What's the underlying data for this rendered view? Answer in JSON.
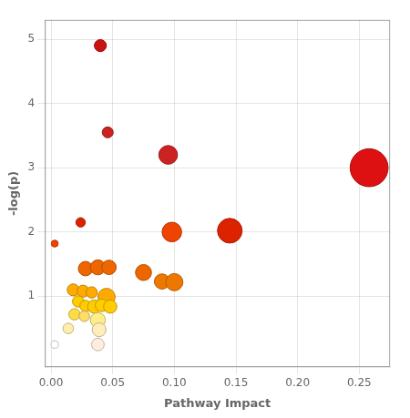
{
  "chart_data": {
    "type": "bubble",
    "xlabel": "Pathway Impact",
    "ylabel": "-log(p)",
    "x": [
      0.04,
      0.046,
      0.095,
      0.258,
      0.024,
      0.003,
      0.098,
      0.145,
      0.028,
      0.038,
      0.047,
      0.075,
      0.09,
      0.1,
      0.018,
      0.026,
      0.033,
      0.045,
      0.022,
      0.028,
      0.035,
      0.041,
      0.048,
      0.019,
      0.027,
      0.038,
      0.014,
      0.039,
      0.003,
      0.038
    ],
    "values": [
      4.9,
      3.55,
      3.2,
      3.0,
      2.15,
      1.82,
      2.0,
      2.02,
      1.43,
      1.45,
      1.45,
      1.37,
      1.23,
      1.22,
      1.1,
      1.08,
      1.06,
      0.99,
      0.92,
      0.85,
      0.84,
      0.86,
      0.84,
      0.72,
      0.69,
      0.63,
      0.5,
      0.48,
      0.25,
      0.25
    ],
    "sizes": [
      90,
      75,
      220,
      900,
      55,
      30,
      240,
      380,
      130,
      140,
      130,
      160,
      145,
      185,
      90,
      90,
      80,
      185,
      80,
      80,
      110,
      100,
      110,
      80,
      70,
      140,
      70,
      120,
      35,
      100
    ],
    "colors": [
      "#cc1111",
      "#cc2222",
      "#cc2222",
      "#dd1111",
      "#dd2200",
      "#ee4400",
      "#ee4400",
      "#dd2200",
      "#ee6600",
      "#ee6600",
      "#ee6600",
      "#ee6600",
      "#ee7700",
      "#ee7700",
      "#ffaa00",
      "#ffaa00",
      "#ffaa00",
      "#ffaa00",
      "#ffcc00",
      "#ffcc00",
      "#ffcc00",
      "#ffcc00",
      "#ffcc00",
      "#ffdd44",
      "#ffdd66",
      "#ffee88",
      "#ffeeaa",
      "#ffeebb",
      "#ffffff",
      "#ffeedd"
    ],
    "xlim": [
      -0.005,
      0.275
    ],
    "ylim": [
      -0.1,
      5.3
    ],
    "xticks": [
      {
        "value": 0.0,
        "label": "0.00"
      },
      0.05,
      {
        "value": 0.1,
        "label": "0.10"
      },
      0.15,
      {
        "value": 0.2,
        "label": "0.20"
      },
      0.25
    ],
    "yticks": [
      1,
      2,
      3,
      4,
      5
    ],
    "grid": true
  }
}
